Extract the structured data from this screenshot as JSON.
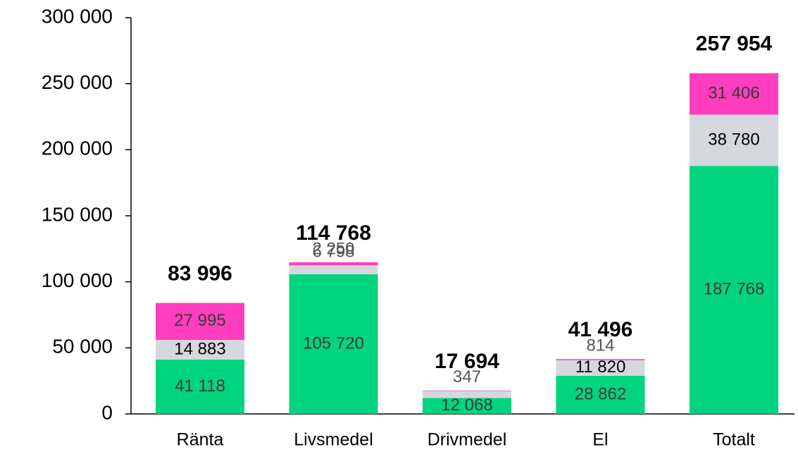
{
  "chart_data": {
    "type": "stacked_bar",
    "categories": [
      "Ränta",
      "Livsmedel",
      "Drivmedel",
      "El",
      "Totalt"
    ],
    "series": [
      {
        "color": "#00d47f",
        "values": [
          41118,
          105720,
          12068,
          28862,
          187768
        ],
        "value_labels": [
          "41 118",
          "105 720",
          "12 068",
          "28 862",
          "187 768"
        ]
      },
      {
        "color": "#d5d8dc",
        "values": [
          14883,
          6798,
          5279,
          11820,
          38780
        ],
        "value_labels": [
          "14 883",
          "6 798",
          null,
          "11 820",
          "38 780"
        ]
      },
      {
        "color": "#ff3dbf",
        "values": [
          27995,
          2250,
          347,
          814,
          31406
        ],
        "value_labels": [
          "27 995",
          "2 250",
          "347",
          "814",
          "31 406"
        ]
      }
    ],
    "totals": [
      83996,
      114768,
      17694,
      41496,
      257954
    ],
    "total_labels": [
      "83 996",
      "114 768",
      "17 694",
      "41 496",
      "257 954"
    ],
    "ylim": [
      0,
      300000
    ],
    "yticks": [
      {
        "value": 0,
        "label": "0"
      },
      {
        "value": 50000,
        "label": "50 000"
      },
      {
        "value": 100000,
        "label": "100 000"
      },
      {
        "value": 150000,
        "label": "150 000"
      },
      {
        "value": 200000,
        "label": "200 000"
      },
      {
        "value": 250000,
        "label": "250 000"
      },
      {
        "value": 300000,
        "label": "300 000"
      }
    ]
  }
}
